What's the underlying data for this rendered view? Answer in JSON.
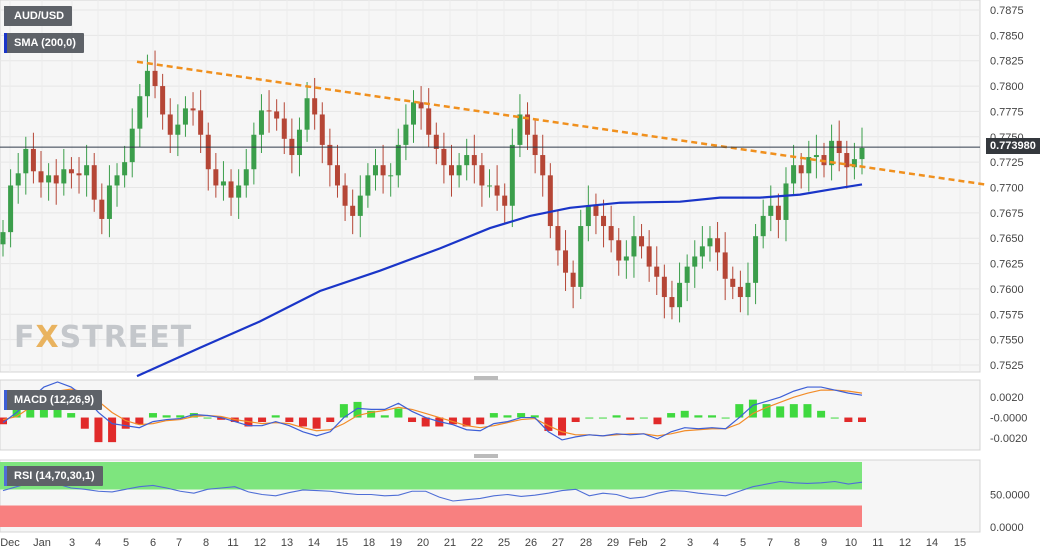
{
  "header": {
    "symbol": "AUD/USD",
    "sma_label": "SMA (200,0)",
    "macd_label": "MACD (12,26,9)",
    "rsi_label": "RSI (14,70,30,1)"
  },
  "watermark": {
    "prefix": "F",
    "x": "X",
    "rest": "STREET"
  },
  "last_price": "0.773980",
  "colors": {
    "up": "#3b9e4b",
    "down": "#b54636",
    "sma": "#1a35c8",
    "trend": "#f0901e",
    "macd": "#3d5fd6",
    "signal": "#f28c28",
    "rsi_line": "#4f6ed6",
    "overbought": "#7ee57e",
    "oversold": "#f88080"
  },
  "chart_data": [
    {
      "type": "candlestick",
      "title": "AUD/USD",
      "ylim": [
        0.7505,
        0.7885
      ],
      "y_ticks": [
        "0.7525",
        "0.7550",
        "0.7575",
        "0.7600",
        "0.7625",
        "0.7650",
        "0.7675",
        "0.7700",
        "0.7725",
        "0.7750",
        "0.7775",
        "0.7800",
        "0.7825",
        "0.7850",
        "0.7875"
      ],
      "x_ticks": [
        "Dec",
        "Jan",
        "3",
        "4",
        "5",
        "6",
        "7",
        "8",
        "11",
        "12",
        "13",
        "14",
        "15",
        "18",
        "19",
        "20",
        "21",
        "22",
        "25",
        "26",
        "27",
        "28",
        "29",
        "Feb",
        "2",
        "3",
        "4",
        "5",
        "7",
        "8",
        "9",
        "10",
        "11",
        "12",
        "14",
        "15"
      ],
      "closes": [
        0.7656,
        0.7702,
        0.7714,
        0.7738,
        0.7716,
        0.7705,
        0.7712,
        0.7704,
        0.7718,
        0.7714,
        0.7712,
        0.7722,
        0.7688,
        0.7669,
        0.7702,
        0.7712,
        0.7725,
        0.7758,
        0.779,
        0.7815,
        0.78,
        0.7772,
        0.7752,
        0.7762,
        0.7778,
        0.7776,
        0.7752,
        0.7718,
        0.7702,
        0.7706,
        0.769,
        0.7702,
        0.7718,
        0.7752,
        0.7776,
        0.7775,
        0.7768,
        0.7748,
        0.7732,
        0.7757,
        0.7788,
        0.7772,
        0.7742,
        0.7722,
        0.7702,
        0.7682,
        0.7672,
        0.7692,
        0.7712,
        0.7722,
        0.7712,
        0.7712,
        0.7742,
        0.7762,
        0.7784,
        0.7778,
        0.7752,
        0.7738,
        0.7722,
        0.7712,
        0.7722,
        0.7732,
        0.7722,
        0.7702,
        0.7702,
        0.7692,
        0.7682,
        0.7742,
        0.7772,
        0.7752,
        0.7732,
        0.7712,
        0.7662,
        0.7638,
        0.7616,
        0.7602,
        0.7662,
        0.7682,
        0.7672,
        0.7662,
        0.7648,
        0.7628,
        0.7632,
        0.7652,
        0.7642,
        0.7622,
        0.7612,
        0.7592,
        0.7582,
        0.7606,
        0.7622,
        0.7632,
        0.7642,
        0.765,
        0.7636,
        0.761,
        0.7602,
        0.7592,
        0.7606,
        0.7652,
        0.7672,
        0.7682,
        0.7668,
        0.7704,
        0.7722,
        0.7714,
        0.773,
        0.7732,
        0.7722,
        0.7746,
        0.7734,
        0.772,
        0.7728,
        0.7739
      ],
      "sma": [
        [
          137,
          0.7514
        ],
        [
          200,
          0.7542
        ],
        [
          260,
          0.7568
        ],
        [
          320,
          0.7598
        ],
        [
          380,
          0.7618
        ],
        [
          440,
          0.764
        ],
        [
          490,
          0.766
        ],
        [
          530,
          0.7672
        ],
        [
          570,
          0.768
        ],
        [
          620,
          0.7685
        ],
        [
          680,
          0.7686
        ],
        [
          720,
          0.769
        ],
        [
          760,
          0.769
        ],
        [
          800,
          0.7693
        ],
        [
          830,
          0.7698
        ],
        [
          862,
          0.7703
        ]
      ],
      "trendline": {
        "start": [
          137,
          0.7824
        ],
        "end": [
          985,
          0.7703
        ]
      }
    },
    {
      "type": "line",
      "title": "MACD (12,26,9)",
      "ylim": [
        -0.0028,
        0.0033
      ],
      "y_ticks": [
        "0.0020",
        "-0.0000",
        "-0.0020"
      ],
      "series": [
        {
          "name": "MACD",
          "values": [
            -0.0005,
            0.0005,
            0.0018,
            0.003,
            0.0035,
            0.003,
            0.002,
            0.0005,
            -0.0006,
            -0.0008,
            -0.001,
            -0.0004,
            -0.0002,
            -0.0001,
            0.0003,
            0.0002,
            0.0,
            -0.0004,
            -0.0008,
            -0.0008,
            -0.0004,
            -0.0008,
            -0.0014,
            -0.0018,
            -0.0014,
            0.0,
            0.0009,
            0.0008,
            0.0008,
            0.0014,
            0.0006,
            0.0,
            -0.0004,
            -0.0007,
            -0.0012,
            -0.0013,
            -0.0006,
            -0.0004,
            0.0,
            0.0,
            -0.0014,
            -0.0022,
            -0.0019,
            -0.0017,
            -0.0018,
            -0.0016,
            -0.0017,
            -0.0016,
            -0.0021,
            -0.0014,
            -0.001,
            -0.0011,
            -0.001,
            -0.0011,
            0.0,
            0.0012,
            0.0016,
            0.002,
            0.0026,
            0.003,
            0.003,
            0.0027,
            0.0024,
            0.0022
          ]
        },
        {
          "name": "Signal",
          "values": [
            -0.0002,
            0.0001,
            0.001,
            0.0019,
            0.0026,
            0.0028,
            0.0025,
            0.0016,
            0.0005,
            -0.0003,
            -0.0007,
            -0.0006,
            -0.0003,
            -0.0002,
            0.0001,
            0.0002,
            0.0001,
            -0.0002,
            -0.0004,
            -0.0006,
            -0.0005,
            -0.0006,
            -0.001,
            -0.0013,
            -0.0012,
            -0.0006,
            0.0002,
            0.0005,
            0.0007,
            0.001,
            0.0008,
            0.0004,
            0.0,
            -0.0004,
            -0.0008,
            -0.001,
            -0.0008,
            -0.0005,
            -0.0002,
            -0.0001,
            -0.0008,
            -0.0014,
            -0.0017,
            -0.0017,
            -0.0018,
            -0.0017,
            -0.0016,
            -0.0016,
            -0.0018,
            -0.0016,
            -0.0013,
            -0.0012,
            -0.0011,
            -0.0011,
            -0.0006,
            0.0004,
            0.001,
            0.0015,
            0.002,
            0.0024,
            0.0027,
            0.0027,
            0.0026,
            0.0024
          ]
        }
      ]
    },
    {
      "type": "line",
      "title": "RSI (14,70,30,1)",
      "ylim": [
        0,
        100
      ],
      "y_ticks": [
        "50.0000",
        "0.0000"
      ],
      "overbought": 70,
      "oversold": 30,
      "series": [
        {
          "name": "RSI",
          "values": [
            56,
            62,
            68,
            70,
            66,
            60,
            58,
            55,
            54,
            58,
            62,
            64,
            60,
            55,
            52,
            58,
            60,
            62,
            54,
            50,
            48,
            53,
            57,
            56,
            55,
            52,
            50,
            50,
            48,
            49,
            55,
            55,
            46,
            40,
            42,
            44,
            48,
            50,
            47,
            49,
            52,
            56,
            58,
            48,
            52,
            50,
            44,
            46,
            52,
            56,
            55,
            52,
            50,
            48,
            55,
            62,
            66,
            70,
            68,
            67,
            68,
            70,
            66,
            69
          ]
        }
      ]
    }
  ]
}
